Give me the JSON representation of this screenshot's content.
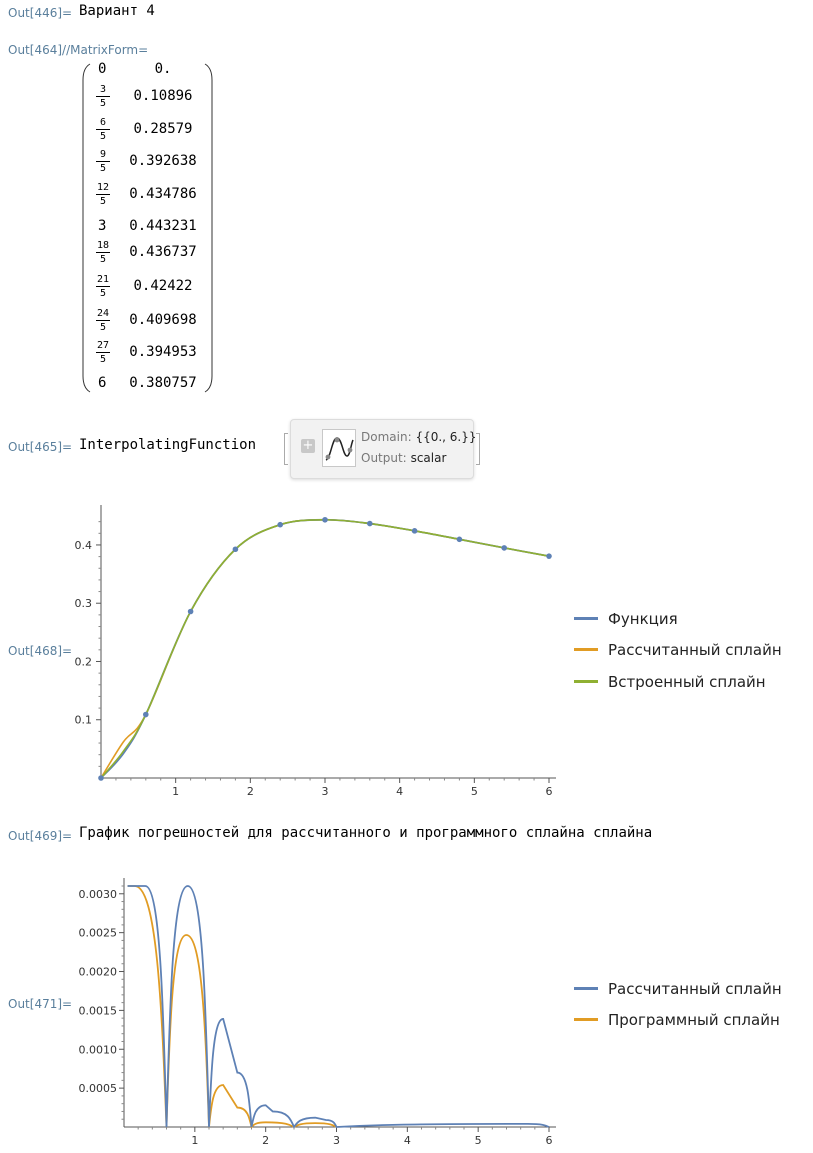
{
  "cells": {
    "out446": {
      "label": "Out[446]=",
      "text": "Вариант 4"
    },
    "out464": {
      "label": "Out[464]//MatrixForm="
    },
    "out465": {
      "label": "Out[465]=",
      "head": "InterpolatingFunction",
      "domain_key": "Domain:",
      "domain_val": "{{0., 6.}}",
      "output_key": "Output:",
      "output_val": "scalar"
    },
    "out468": {
      "label": "Out[468]="
    },
    "out469": {
      "label": "Out[469]=",
      "text": "График погрешностей для рассчитанного и программного сплайна сплайна"
    },
    "out471": {
      "label": "Out[471]="
    }
  },
  "matrix": [
    {
      "x": "0",
      "y": "0."
    },
    {
      "num": "3",
      "den": "5",
      "y": "0.10896"
    },
    {
      "num": "6",
      "den": "5",
      "y": "0.28579"
    },
    {
      "num": "9",
      "den": "5",
      "y": "0.392638"
    },
    {
      "num": "12",
      "den": "5",
      "y": "0.434786"
    },
    {
      "x": "3",
      "y": "0.443231"
    },
    {
      "num": "18",
      "den": "5",
      "y": "0.436737"
    },
    {
      "num": "21",
      "den": "5",
      "y": "0.42422"
    },
    {
      "num": "24",
      "den": "5",
      "y": "0.409698"
    },
    {
      "num": "27",
      "den": "5",
      "y": "0.394953"
    },
    {
      "x": "6",
      "y": "0.380757"
    }
  ],
  "colors": {
    "blue": "#5e81b5",
    "orange": "#e19c24",
    "green": "#8fb032"
  },
  "chart_data": [
    {
      "type": "line",
      "xlim": [
        0,
        6
      ],
      "ylim": [
        0,
        0.46
      ],
      "xticks": [
        "1",
        "2",
        "3",
        "4",
        "5",
        "6"
      ],
      "yticks": [
        "0.1",
        "0.2",
        "0.3",
        "0.4"
      ],
      "legend_placement": "right",
      "series": [
        {
          "name": "Функция",
          "color": "#5e81b5",
          "x": [
            0,
            0.6,
            1.2,
            1.8,
            2.4,
            3.0,
            3.6,
            4.2,
            4.8,
            5.4,
            6.0
          ],
          "y": [
            0,
            0.10896,
            0.28579,
            0.392638,
            0.434786,
            0.443231,
            0.436737,
            0.42422,
            0.409698,
            0.394953,
            0.380757
          ]
        },
        {
          "name": "Рассчитанный сплайн",
          "color": "#e19c24"
        },
        {
          "name": "Встроенный сплайн",
          "color": "#8fb032"
        }
      ]
    },
    {
      "type": "line",
      "xlim": [
        0,
        6
      ],
      "ylim": [
        0,
        0.0031
      ],
      "xticks": [
        "1",
        "2",
        "3",
        "4",
        "5",
        "6"
      ],
      "yticks": [
        "0.0005",
        "0.0010",
        "0.0015",
        "0.0020",
        "0.0025",
        "0.0030"
      ],
      "legend_placement": "right",
      "series": [
        {
          "name": "Рассчитанный сплайн",
          "color": "#5e81b5",
          "x": [
            0.05,
            0.3,
            0.6,
            0.9,
            1.2,
            1.4,
            1.6,
            1.8,
            2.0,
            2.1,
            2.4,
            2.7,
            2.85,
            3.0,
            5.7,
            6.0
          ],
          "y": [
            0.0031,
            0.0031,
            0,
            0.0031,
            0,
            0.00139,
            0.0007,
            0,
            0.00028,
            0.0002,
            0,
            0.00012,
            9e-05,
            0,
            4e-05,
            0
          ]
        },
        {
          "name": "Программный сплайн",
          "color": "#e19c24",
          "x": [
            0.05,
            0.15,
            0.6,
            0.88,
            1.2,
            1.4,
            1.6,
            1.8,
            2.0,
            2.4,
            2.7,
            3.0
          ],
          "y": [
            0.0031,
            0.0031,
            0,
            0.00247,
            0,
            0.00054,
            0.00025,
            0,
            6e-05,
            0,
            5e-05,
            0
          ]
        }
      ]
    }
  ]
}
